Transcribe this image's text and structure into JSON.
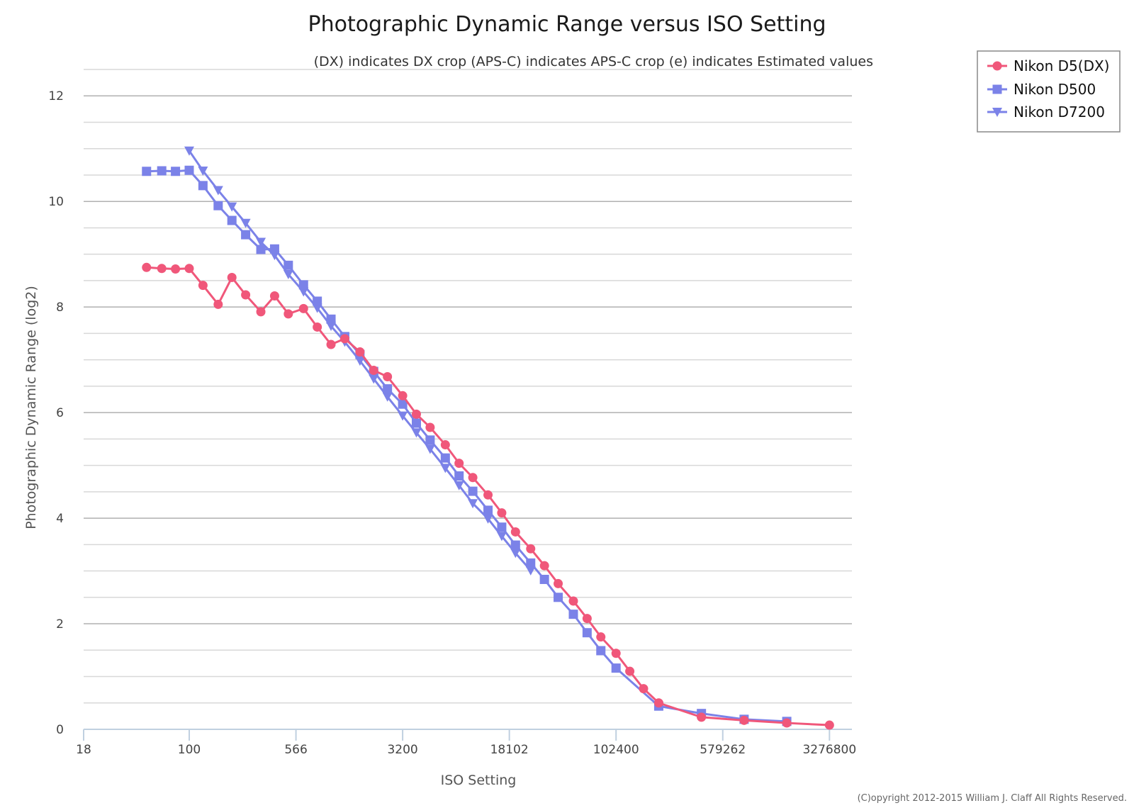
{
  "chart_data": {
    "type": "line",
    "title": "Photographic Dynamic Range versus ISO Setting",
    "subtitle": "(DX) indicates DX crop (APS-C) indicates APS-C crop (e) indicates Estimated values",
    "xlabel": "ISO Setting",
    "ylabel": "Photographic Dynamic Range (log2)",
    "x_scale": "log2",
    "xlim": [
      18,
      4718592
    ],
    "ylim": [
      0,
      12.5
    ],
    "x_ticks": [
      18,
      100,
      566,
      3200,
      18102,
      102400,
      579262,
      3276800
    ],
    "x_tick_labels": [
      "18",
      "100",
      "566",
      "3200",
      "18102",
      "102400",
      "579262",
      "3276800"
    ],
    "y_ticks": [
      0,
      2,
      4,
      6,
      8,
      10,
      12
    ],
    "y_tick_labels": [
      "0",
      "2",
      "4",
      "6",
      "8",
      "10",
      "12"
    ],
    "y_minor_step": 0.5,
    "grid": true,
    "legend_position": "top-right",
    "series": [
      {
        "name": "Nikon D5(DX)",
        "color": "#f0577a",
        "marker": "circle",
        "points": [
          [
            50,
            8.75
          ],
          [
            64,
            8.73
          ],
          [
            80,
            8.72
          ],
          [
            100,
            8.73
          ],
          [
            125,
            8.41
          ],
          [
            160,
            8.05
          ],
          [
            200,
            8.56
          ],
          [
            250,
            8.23
          ],
          [
            320,
            7.91
          ],
          [
            400,
            8.21
          ],
          [
            500,
            7.87
          ],
          [
            640,
            7.97
          ],
          [
            800,
            7.62
          ],
          [
            1000,
            7.29
          ],
          [
            1250,
            7.4
          ],
          [
            1600,
            7.15
          ],
          [
            2000,
            6.8
          ],
          [
            2500,
            6.68
          ],
          [
            3200,
            6.32
          ],
          [
            4000,
            5.97
          ],
          [
            5000,
            5.72
          ],
          [
            6400,
            5.39
          ],
          [
            8000,
            5.04
          ],
          [
            10000,
            4.77
          ],
          [
            12800,
            4.44
          ],
          [
            16000,
            4.1
          ],
          [
            20000,
            3.74
          ],
          [
            25600,
            3.42
          ],
          [
            32000,
            3.1
          ],
          [
            40000,
            2.76
          ],
          [
            51200,
            2.43
          ],
          [
            64000,
            2.1
          ],
          [
            80000,
            1.75
          ],
          [
            102400,
            1.44
          ],
          [
            128000,
            1.1
          ],
          [
            160000,
            0.77
          ],
          [
            204800,
            0.5
          ],
          [
            409600,
            0.23
          ],
          [
            819200,
            0.17
          ],
          [
            1638400,
            0.12
          ],
          [
            3276800,
            0.08
          ]
        ]
      },
      {
        "name": "Nikon D500",
        "color": "#7b82e8",
        "marker": "square",
        "points": [
          [
            50,
            10.57
          ],
          [
            64,
            10.58
          ],
          [
            80,
            10.57
          ],
          [
            100,
            10.59
          ],
          [
            125,
            10.3
          ],
          [
            160,
            9.92
          ],
          [
            200,
            9.64
          ],
          [
            250,
            9.37
          ],
          [
            320,
            9.09
          ],
          [
            400,
            9.1
          ],
          [
            500,
            8.79
          ],
          [
            640,
            8.42
          ],
          [
            800,
            8.11
          ],
          [
            1000,
            7.77
          ],
          [
            1250,
            7.44
          ],
          [
            1600,
            7.1
          ],
          [
            2000,
            6.78
          ],
          [
            2500,
            6.45
          ],
          [
            3200,
            6.16
          ],
          [
            4000,
            5.8
          ],
          [
            5000,
            5.48
          ],
          [
            6400,
            5.14
          ],
          [
            8000,
            4.8
          ],
          [
            10000,
            4.51
          ],
          [
            12800,
            4.15
          ],
          [
            16000,
            3.83
          ],
          [
            20000,
            3.49
          ],
          [
            25600,
            3.15
          ],
          [
            32000,
            2.84
          ],
          [
            40000,
            2.5
          ],
          [
            51200,
            2.18
          ],
          [
            64000,
            1.83
          ],
          [
            80000,
            1.49
          ],
          [
            102400,
            1.16
          ],
          [
            204800,
            0.44
          ],
          [
            409600,
            0.3
          ],
          [
            819200,
            0.19
          ],
          [
            1638400,
            0.15
          ]
        ]
      },
      {
        "name": "Nikon D7200",
        "color": "#7b82e8",
        "marker": "triangle-down",
        "points": [
          [
            100,
            10.96
          ],
          [
            125,
            10.58
          ],
          [
            160,
            10.21
          ],
          [
            200,
            9.9
          ],
          [
            250,
            9.59
          ],
          [
            320,
            9.23
          ],
          [
            400,
            8.98
          ],
          [
            500,
            8.62
          ],
          [
            640,
            8.29
          ],
          [
            800,
            7.98
          ],
          [
            1000,
            7.64
          ],
          [
            1250,
            7.34
          ],
          [
            1600,
            6.98
          ],
          [
            2000,
            6.64
          ],
          [
            2500,
            6.3
          ],
          [
            3200,
            5.94
          ],
          [
            4000,
            5.62
          ],
          [
            5000,
            5.31
          ],
          [
            6400,
            4.95
          ],
          [
            8000,
            4.62
          ],
          [
            10000,
            4.28
          ],
          [
            12800,
            3.99
          ],
          [
            16000,
            3.66
          ],
          [
            20000,
            3.34
          ],
          [
            25600,
            3.01
          ]
        ]
      }
    ]
  },
  "footer": {
    "copyright": "(C)opyright 2012-2015 William J. Claff All Rights Reserved."
  }
}
